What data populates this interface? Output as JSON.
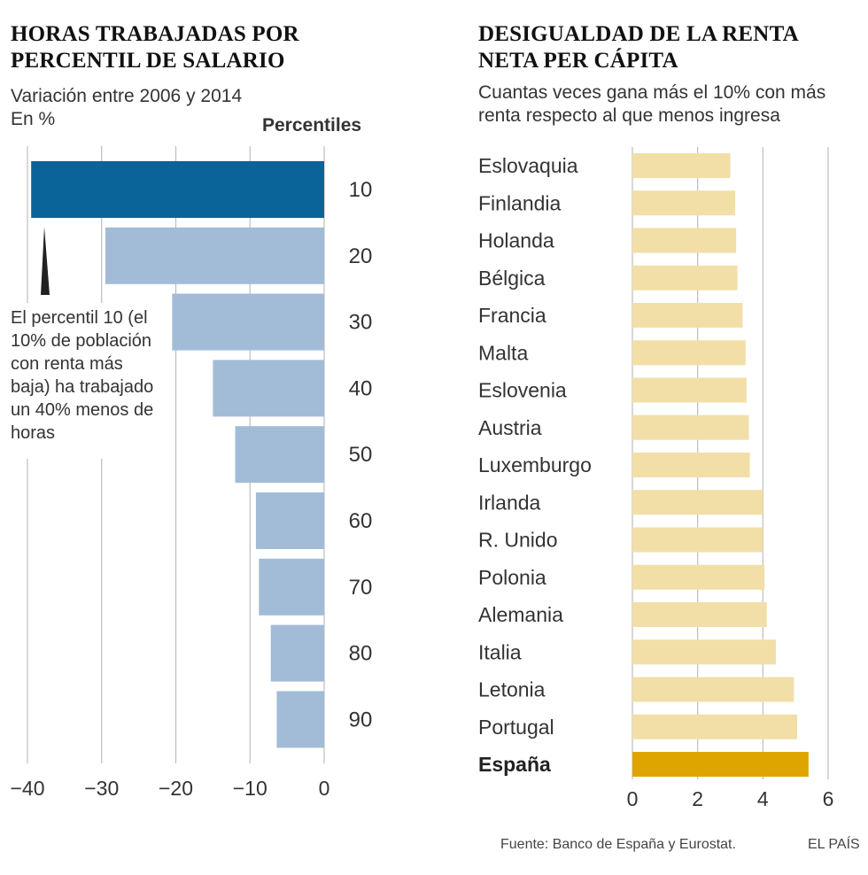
{
  "left": {
    "title_line1": "HORAS TRABAJADAS POR",
    "title_line2": "PERCENTIL DE SALARIO",
    "subtitle_line1": "Variación entre 2006 y 2014",
    "subtitle_line2": "En %",
    "axis_header": "Percentiles",
    "annotation": "El percentil 10 (el 10% de población con renta más baja) ha trabajado un 40% menos de horas"
  },
  "right": {
    "title_line1": "DESIGUALDAD DE LA RENTA",
    "title_line2": "NETA PER CÁPITA",
    "subtitle_line1": "Cuantas veces gana más el 10% con más",
    "subtitle_line2": "renta respecto al que menos ingresa"
  },
  "footer": {
    "source": "Fuente: Banco de España y Eurostat.",
    "brand": "EL PAÍS"
  },
  "colors": {
    "left_highlight": "#0a6399",
    "left_bar": "#a2bcd8",
    "right_bar": "#f2dfa8",
    "right_highlight": "#dea500",
    "grid": "#bdbdbd"
  },
  "chart_data": [
    {
      "type": "bar",
      "orientation": "horizontal",
      "title": "HORAS TRABAJADAS POR PERCENTIL DE SALARIO",
      "categories": [
        "10",
        "20",
        "30",
        "40",
        "50",
        "60",
        "70",
        "80",
        "90"
      ],
      "values": [
        -39.5,
        -29.5,
        -20.5,
        -15,
        -12,
        -9.2,
        -8.8,
        -7.2,
        -6.4
      ],
      "highlight": "10",
      "xlim": [
        -40,
        0
      ],
      "xticks": [
        -40,
        -30,
        -20,
        -10,
        0
      ],
      "xtick_labels": [
        "−40",
        "−30",
        "−20",
        "−10",
        "0"
      ],
      "ylabel": "Percentiles",
      "grid": true
    },
    {
      "type": "bar",
      "orientation": "horizontal",
      "title": "DESIGUALDAD DE LA RENTA NETA PER CÁPITA",
      "categories": [
        "Eslovaquia",
        "Finlandia",
        "Holanda",
        "Bélgica",
        "Francia",
        "Malta",
        "Eslovenia",
        "Austria",
        "Luxemburgo",
        "Irlanda",
        "R. Unido",
        "Polonia",
        "Alemania",
        "Italia",
        "Letonia",
        "Portugal",
        "España"
      ],
      "values": [
        3.0,
        3.15,
        3.18,
        3.22,
        3.38,
        3.47,
        3.5,
        3.57,
        3.6,
        4.0,
        4.0,
        4.05,
        4.12,
        4.4,
        4.95,
        5.05,
        5.4
      ],
      "highlight": "España",
      "xlim": [
        0,
        6
      ],
      "xticks": [
        0,
        2,
        4,
        6
      ],
      "xtick_labels": [
        "0",
        "2",
        "4",
        "6"
      ],
      "grid": true
    }
  ]
}
